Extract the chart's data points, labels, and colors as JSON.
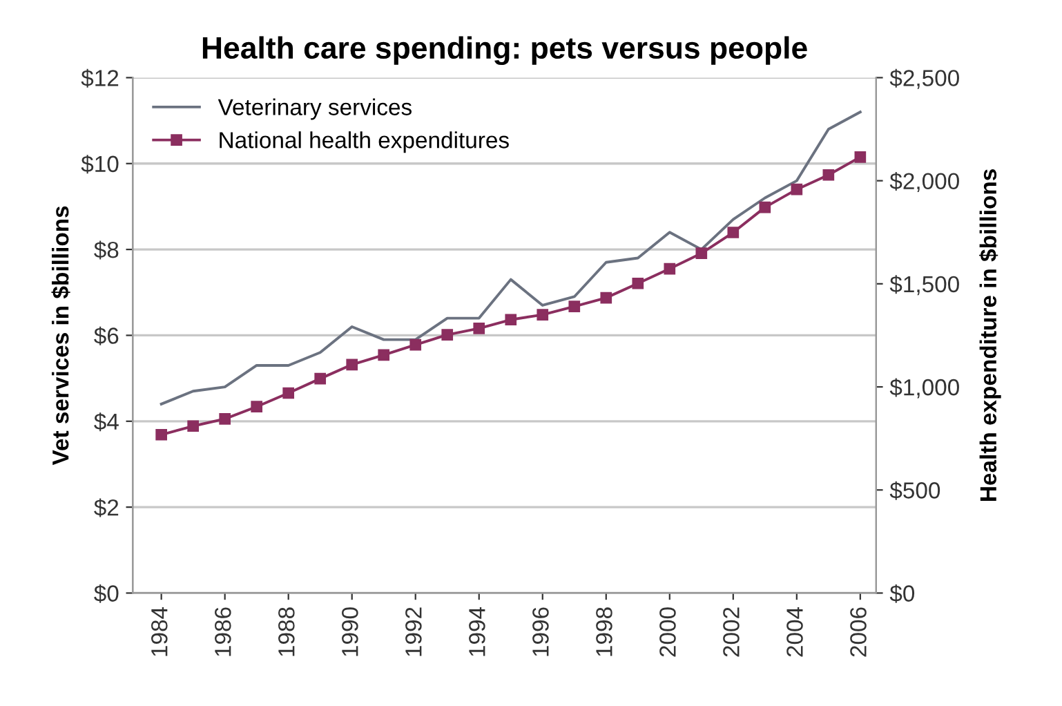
{
  "chart_data": {
    "type": "line",
    "title": "Health care spending: pets versus people",
    "ylabel": "Vet services in $billions",
    "y2label": "Health expenditure in $billions",
    "x": [
      1984,
      1985,
      1986,
      1987,
      1988,
      1989,
      1990,
      1991,
      1992,
      1993,
      1994,
      1995,
      1996,
      1997,
      1998,
      1999,
      2000,
      2001,
      2002,
      2003,
      2004,
      2005,
      2006
    ],
    "series": [
      {
        "name": "Veterinary services",
        "color": "#6b7280",
        "marker": "none",
        "values": [
          4.4,
          4.7,
          4.8,
          5.3,
          5.3,
          5.6,
          6.2,
          5.9,
          5.9,
          6.4,
          6.4,
          7.3,
          6.7,
          6.9,
          7.7,
          7.8,
          8.4,
          8.0,
          8.7,
          9.2,
          9.6,
          10.8,
          11.2
        ]
      },
      {
        "name": "National health expenditures",
        "color": "#8b2e5f",
        "marker": "square",
        "axis": "y2",
        "values": [
          768,
          810,
          845,
          904,
          970,
          1040,
          1108,
          1155,
          1204,
          1253,
          1284,
          1326,
          1350,
          1390,
          1432,
          1502,
          1573,
          1648,
          1749,
          1871,
          1958,
          2028,
          2115
        ]
      }
    ],
    "xlim": [
      1983.1,
      2006.5
    ],
    "xticks": [
      1984,
      1986,
      1988,
      1990,
      1992,
      1994,
      1996,
      1998,
      2000,
      2002,
      2004,
      2006
    ],
    "ylim": [
      0,
      12
    ],
    "yticks": [
      {
        "value": 0,
        "label": "$0"
      },
      {
        "value": 2,
        "label": "$2"
      },
      {
        "value": 4,
        "label": "$4"
      },
      {
        "value": 6,
        "label": "$6"
      },
      {
        "value": 8,
        "label": "$8"
      },
      {
        "value": 10,
        "label": "$10"
      },
      {
        "value": 12,
        "label": "$12"
      }
    ],
    "y2lim": [
      0,
      2500
    ],
    "y2ticks": [
      {
        "value": 0,
        "label": "$0"
      },
      {
        "value": 500,
        "label": "$500"
      },
      {
        "value": 1000,
        "label": "$1,000"
      },
      {
        "value": 1500,
        "label": "$1,500"
      },
      {
        "value": 2000,
        "label": "$2,000"
      },
      {
        "value": 2500,
        "label": "$2,500"
      }
    ],
    "grid": "y",
    "legend": "top left"
  }
}
